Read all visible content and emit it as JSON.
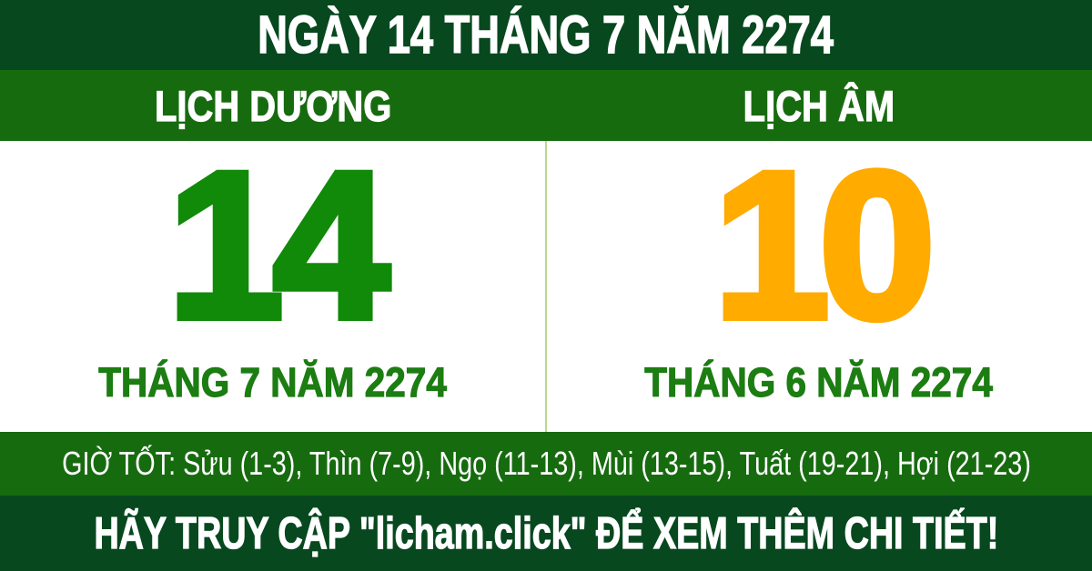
{
  "colors": {
    "dark_green": "#07481f",
    "bright_green": "#176b0f",
    "number_green": "#108a08",
    "label_green": "#1c7d12",
    "number_orange": "#ffab00",
    "divider_green": "#bada8e",
    "text_white": "#ffffff"
  },
  "header": {
    "title": "NGÀY 14 THÁNG 7 NĂM 2274"
  },
  "solar": {
    "header_label": "LỊCH DƯƠNG",
    "day": "14",
    "month_year": "THÁNG 7 NĂM 2274"
  },
  "lunar": {
    "header_label": "LỊCH ÂM",
    "day": "10",
    "month_year": "THÁNG 6 NĂM 2274"
  },
  "good_hours": {
    "text": "GIỜ TỐT: Sửu (1-3), Thìn (7-9), Ngọ (11-13), Mùi (13-15), Tuất (19-21), Hợi (21-23)"
  },
  "footer": {
    "cta": "HÃY TRUY CẬP \"licham.click\" ĐỂ XEM THÊM CHI TIẾT!"
  }
}
